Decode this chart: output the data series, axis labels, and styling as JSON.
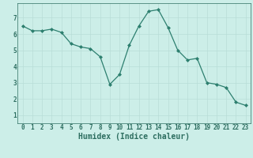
{
  "x": [
    0,
    1,
    2,
    3,
    4,
    5,
    6,
    7,
    8,
    9,
    10,
    11,
    12,
    13,
    14,
    15,
    16,
    17,
    18,
    19,
    20,
    21,
    22,
    23
  ],
  "y": [
    6.5,
    6.2,
    6.2,
    6.3,
    6.1,
    5.4,
    5.2,
    5.1,
    4.6,
    2.9,
    3.5,
    5.3,
    6.5,
    7.4,
    7.5,
    6.4,
    5.0,
    4.4,
    4.5,
    3.0,
    2.9,
    2.7,
    1.8,
    1.6
  ],
  "line_color": "#2d7f6f",
  "marker": "D",
  "marker_size": 2,
  "bg_color": "#cceee8",
  "grid_color": "#b8ddd7",
  "xlabel": "Humidex (Indice chaleur)",
  "xlabel_fontsize": 7,
  "ylabel_ticks": [
    1,
    2,
    3,
    4,
    5,
    6,
    7
  ],
  "xlim": [
    -0.5,
    23.5
  ],
  "ylim": [
    0.5,
    7.9
  ],
  "xtick_labels": [
    "0",
    "1",
    "2",
    "3",
    "4",
    "5",
    "6",
    "7",
    "8",
    "9",
    "10",
    "11",
    "12",
    "13",
    "14",
    "15",
    "16",
    "17",
    "18",
    "19",
    "20",
    "21",
    "22",
    "23"
  ],
  "tick_color": "#2d6e60",
  "tick_fontsize": 5.5
}
